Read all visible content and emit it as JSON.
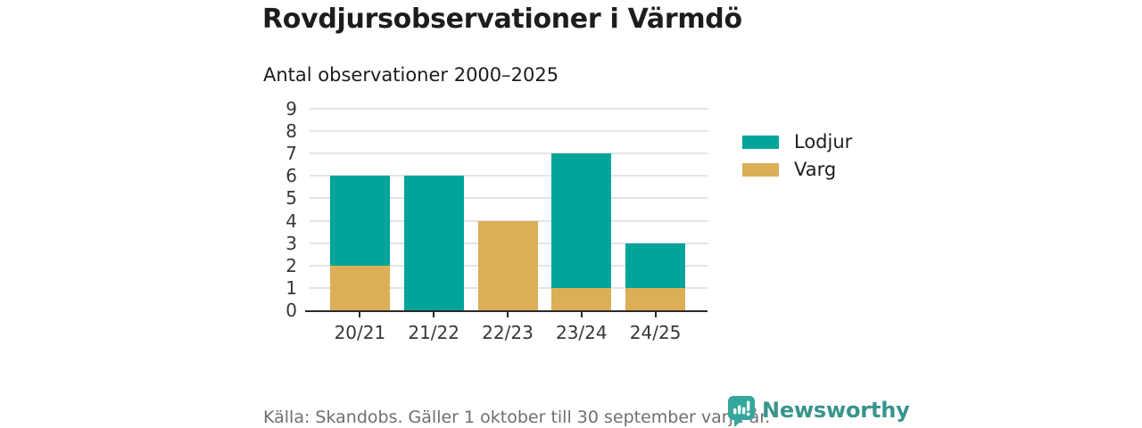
{
  "header": {
    "title": "Rovdjursobservationer i Värmdö",
    "subtitle": "Antal observationer 2000–2025"
  },
  "chart_data": {
    "type": "bar",
    "stacked": true,
    "title": "Rovdjursobservationer i Värmdö",
    "subtitle": "Antal observationer 2000–2025",
    "categories": [
      "20/21",
      "21/22",
      "22/23",
      "23/24",
      "24/25"
    ],
    "series": [
      {
        "name": "Lodjur",
        "color": "#00a49a",
        "values": [
          4,
          6,
          0,
          6,
          2
        ]
      },
      {
        "name": "Varg",
        "color": "#dcae58",
        "values": [
          2,
          0,
          4,
          1,
          1
        ]
      }
    ],
    "stack_bottom_to_top": [
      "Varg",
      "Lodjur"
    ],
    "xlabel": "",
    "ylabel": "",
    "ylim": [
      0,
      9
    ],
    "ytick_step": 1,
    "yticks": [
      0,
      1,
      2,
      3,
      4,
      5,
      6,
      7,
      8,
      9
    ],
    "grid": "horizontal",
    "legend_position": "right"
  },
  "footer": {
    "source": "Källa: Skandobs. Gäller 1 oktober till 30 september varje år.",
    "brand": "Newsworthy"
  },
  "colors": {
    "lodjur": "#00a49a",
    "varg": "#dcae58",
    "gridline": "#e4e4e4",
    "axis": "#2b2b2b",
    "text": "#1d1d1b",
    "axis_label": "#383838",
    "muted": "#6f6f6f",
    "brand_icon": "#35a79c",
    "brand_text": "#38948d"
  }
}
